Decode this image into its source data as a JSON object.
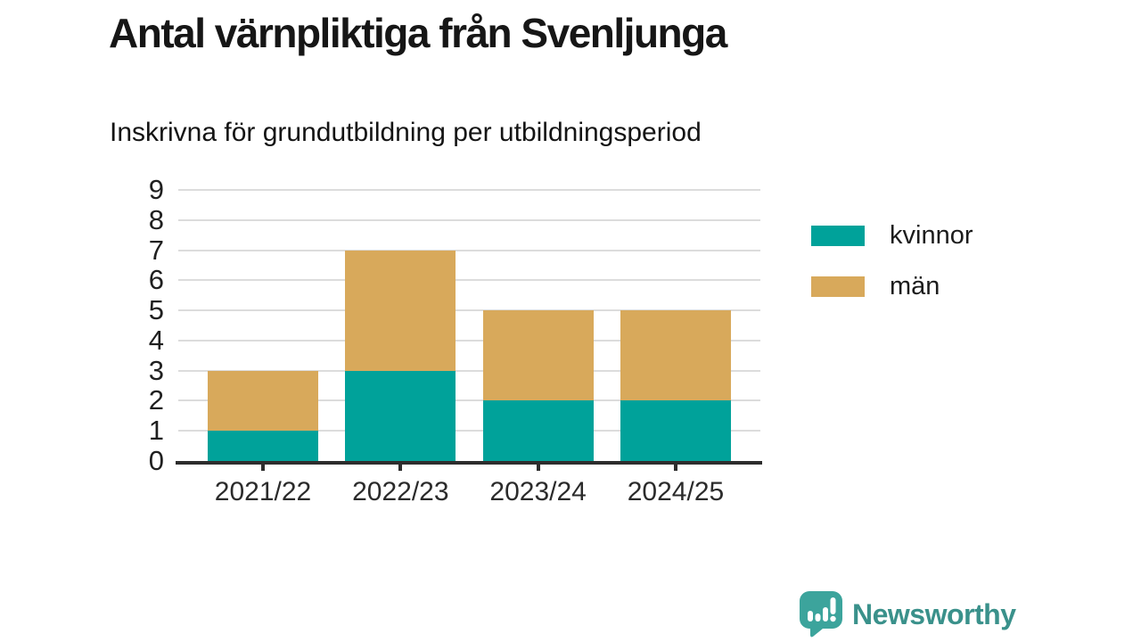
{
  "header": {
    "title": "Antal värnpliktiga från Svenljunga",
    "subtitle": "Inskrivna för grundutbildning per utbildningsperiod"
  },
  "chart_data": {
    "type": "bar",
    "stacked": true,
    "title": "Antal värnpliktiga från Svenljunga",
    "subtitle": "Inskrivna för grundutbildning per utbildningsperiod",
    "categories": [
      "2021/22",
      "2022/23",
      "2023/24",
      "2024/25"
    ],
    "series": [
      {
        "name": "kvinnor",
        "color": "#00a29a",
        "values": [
          1,
          3,
          2,
          2
        ]
      },
      {
        "name": "män",
        "color": "#d8a95b",
        "values": [
          2,
          4,
          3,
          3
        ]
      }
    ],
    "stack_totals": [
      3,
      7,
      5,
      5
    ],
    "ylim": [
      0,
      9
    ],
    "yticks": [
      0,
      1,
      2,
      3,
      4,
      5,
      6,
      7,
      8,
      9
    ],
    "xlabel": "",
    "ylabel": "",
    "grid": "horizontal",
    "legend_position": "right"
  },
  "colors": {
    "kvinnor": "#00a29a",
    "man": "#d8a95b",
    "axis": "#2d2d2d",
    "gridline": "#dcdcdc",
    "brand_text": "#3a918b",
    "brand_bubble": "#3ca49c"
  },
  "footer": {
    "brand_name": "Newsworthy",
    "brand_icon": "bar-chart-speech-bubble-icon"
  }
}
